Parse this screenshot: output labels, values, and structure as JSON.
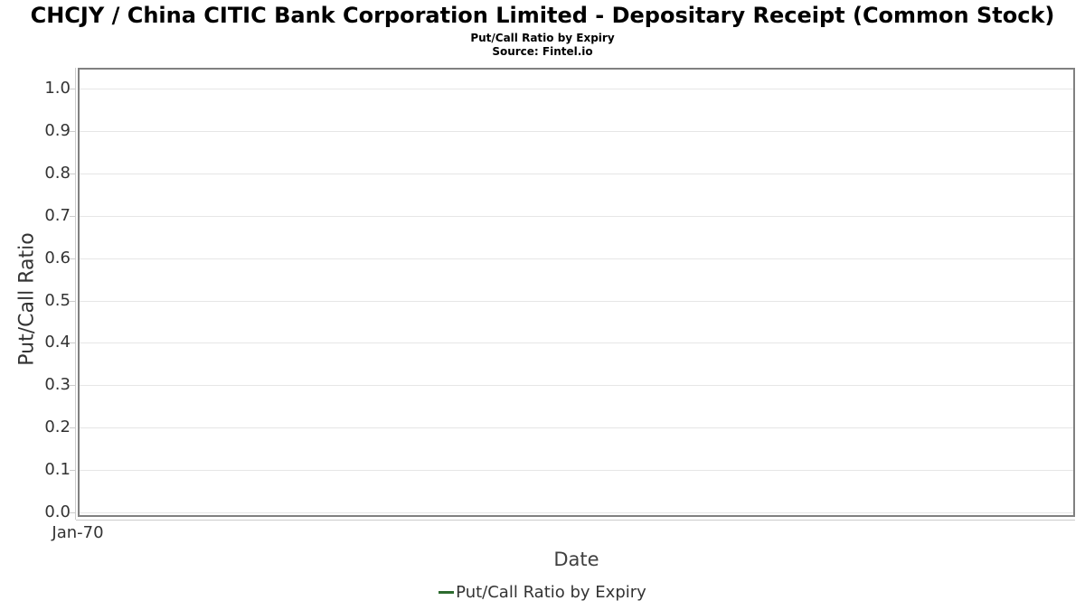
{
  "chart_data": {
    "type": "line",
    "title": "CHCJY / China CITIC Bank Corporation Limited - Depositary Receipt (Common Stock)",
    "subtitle": "Put/Call Ratio by Expiry",
    "source": "Source: Fintel.io",
    "xlabel": "Date",
    "ylabel": "Put/Call Ratio",
    "xticks": [
      "Jan-70"
    ],
    "yticks": [
      "1.0",
      "0.9",
      "0.8",
      "0.7",
      "0.6",
      "0.5",
      "0.4",
      "0.3",
      "0.2",
      "0.1",
      "0.0"
    ],
    "ylim": [
      0.0,
      1.05
    ],
    "grid": true,
    "legend_position": "bottom",
    "legend": [
      {
        "label": "Put/Call Ratio by Expiry",
        "color": "#2d6b2f",
        "marker": "dash"
      }
    ],
    "series": [
      {
        "name": "Put/Call Ratio by Expiry",
        "x": [],
        "y": []
      }
    ]
  },
  "colors": {
    "title_text": "#000000",
    "axis_text": "#333333",
    "plot_border": "#808080",
    "gridline": "#e6e6e6",
    "axis_line": "#cccccc",
    "accent_green": "#2d6b2f"
  }
}
